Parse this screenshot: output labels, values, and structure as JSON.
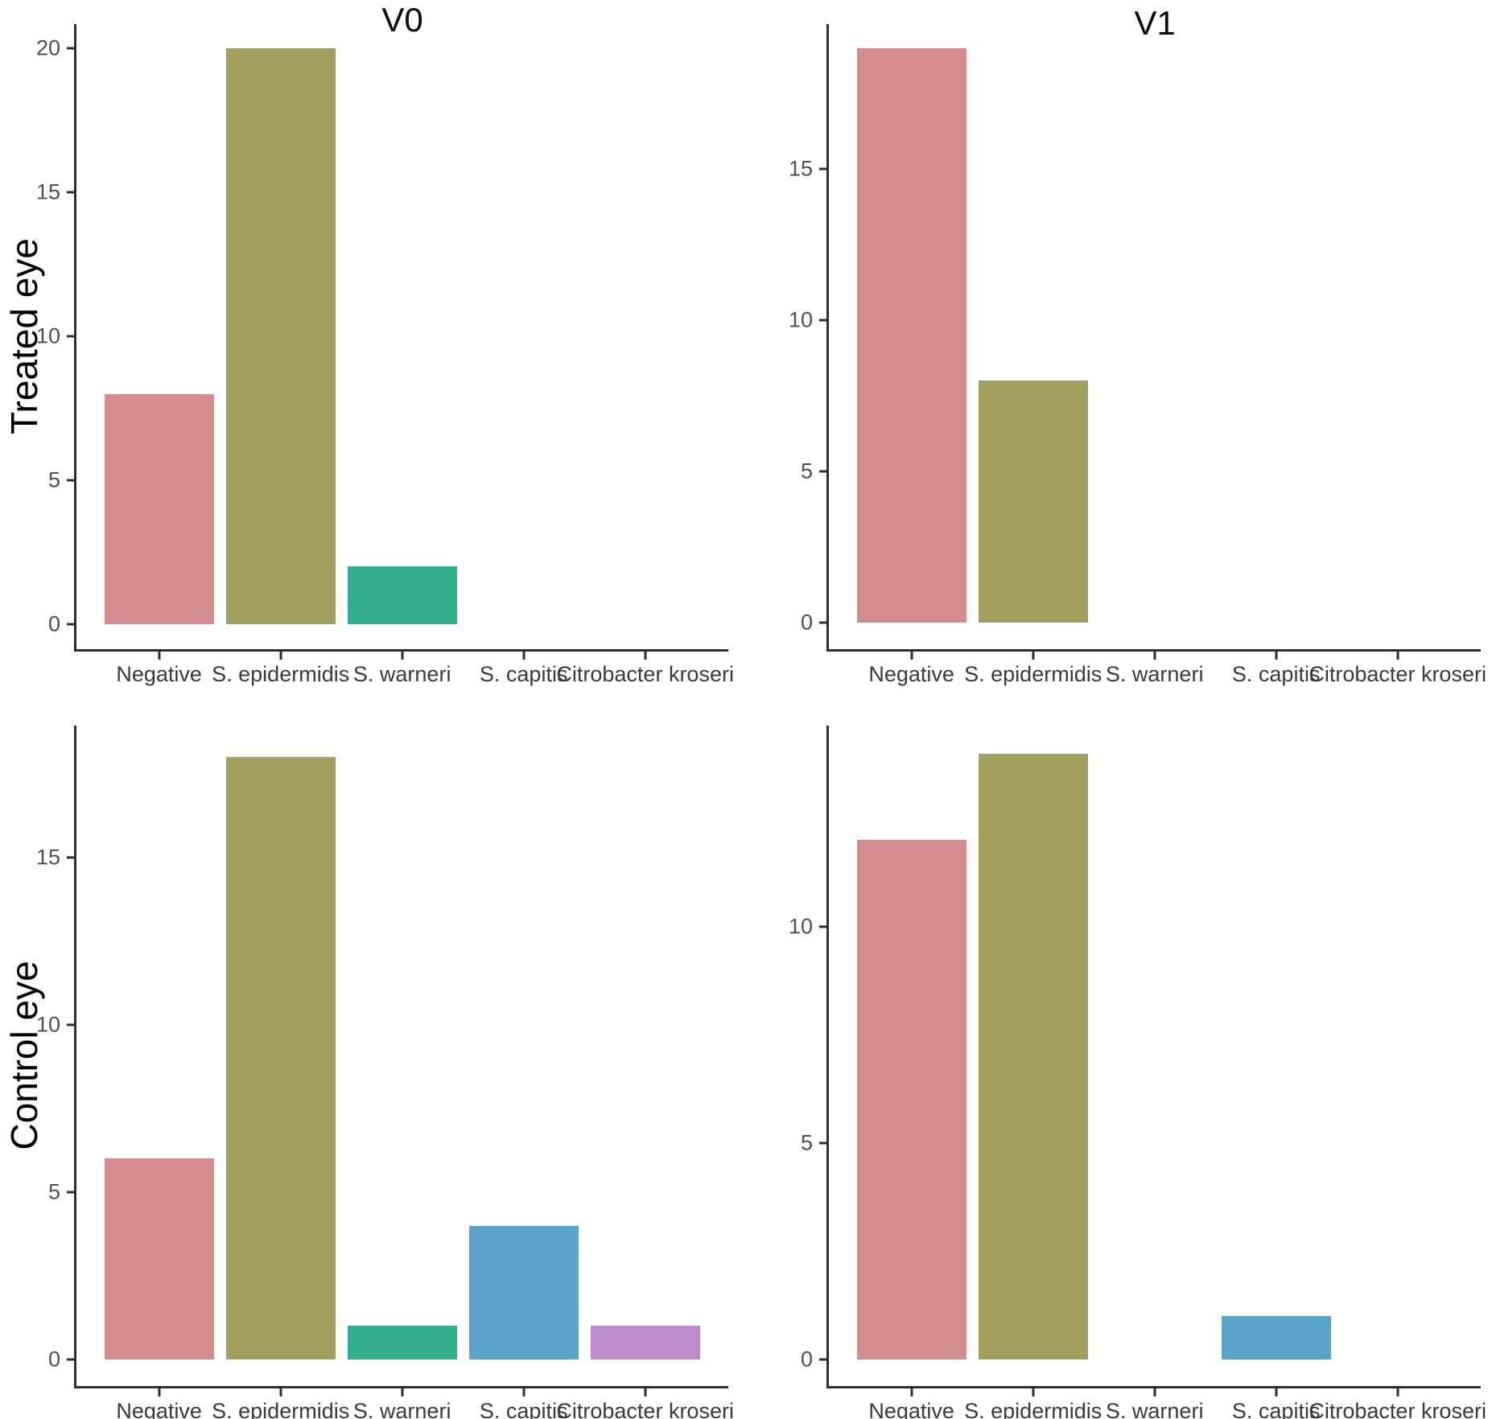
{
  "figure": {
    "columns": [
      "V0",
      "V1"
    ],
    "rows": [
      "Treated eye",
      "Control eye"
    ],
    "categories": [
      "Negative",
      "S. epidermidis",
      "S. warneri",
      "S. capitis",
      "Citrobacter kroseri"
    ],
    "category_colors": {
      "Negative": "#d48b8d",
      "S. epidermidis": "#a2a05e",
      "S. warneri": "#31af8d",
      "S. capitis": "#5ba4c9",
      "Citrobacter kroseri": "#bd8bca"
    },
    "axis_color": "#2e2e2e",
    "ytick_label_color": "#4f4f4f",
    "xtick_label_color": "#3a3a3a"
  },
  "chart_data": [
    {
      "type": "bar",
      "facet_col": "V0",
      "facet_row": "Treated eye",
      "categories": [
        "Negative",
        "S. epidermidis",
        "S. warneri",
        "S. capitis",
        "Citrobacter kroseri"
      ],
      "values": [
        8,
        20,
        2,
        0,
        0
      ],
      "yticks": [
        0,
        5,
        10,
        15,
        20
      ],
      "ylim": [
        0,
        20.8
      ],
      "xlabel": "",
      "ylabel": "",
      "grid": "off",
      "legend": "none"
    },
    {
      "type": "bar",
      "facet_col": "V1",
      "facet_row": "Treated eye",
      "categories": [
        "Negative",
        "S. epidermidis",
        "S. warneri",
        "S. capitis",
        "Citrobacter kroseri"
      ],
      "values": [
        19,
        8,
        0,
        0,
        0
      ],
      "yticks": [
        0,
        5,
        10,
        15
      ],
      "ylim": [
        0,
        19.8
      ],
      "xlabel": "",
      "ylabel": "",
      "grid": "off",
      "legend": "none"
    },
    {
      "type": "bar",
      "facet_col": "V0",
      "facet_row": "Control eye",
      "categories": [
        "Negative",
        "S. epidermidis",
        "S. warneri",
        "S. capitis",
        "Citrobacter kroseri"
      ],
      "values": [
        6,
        18,
        1,
        4,
        1
      ],
      "yticks": [
        0,
        5,
        10,
        15
      ],
      "ylim": [
        0,
        18.9
      ],
      "xlabel": "",
      "ylabel": "",
      "grid": "off",
      "legend": "none"
    },
    {
      "type": "bar",
      "facet_col": "V1",
      "facet_row": "Control eye",
      "categories": [
        "Negative",
        "S. epidermidis",
        "S. warneri",
        "S. capitis",
        "Citrobacter kroseri"
      ],
      "values": [
        12,
        14,
        0,
        1,
        0
      ],
      "yticks": [
        0,
        5,
        10
      ],
      "ylim": [
        0,
        14.7
      ],
      "xlabel": "",
      "ylabel": "",
      "grid": "off",
      "legend": "none"
    }
  ]
}
